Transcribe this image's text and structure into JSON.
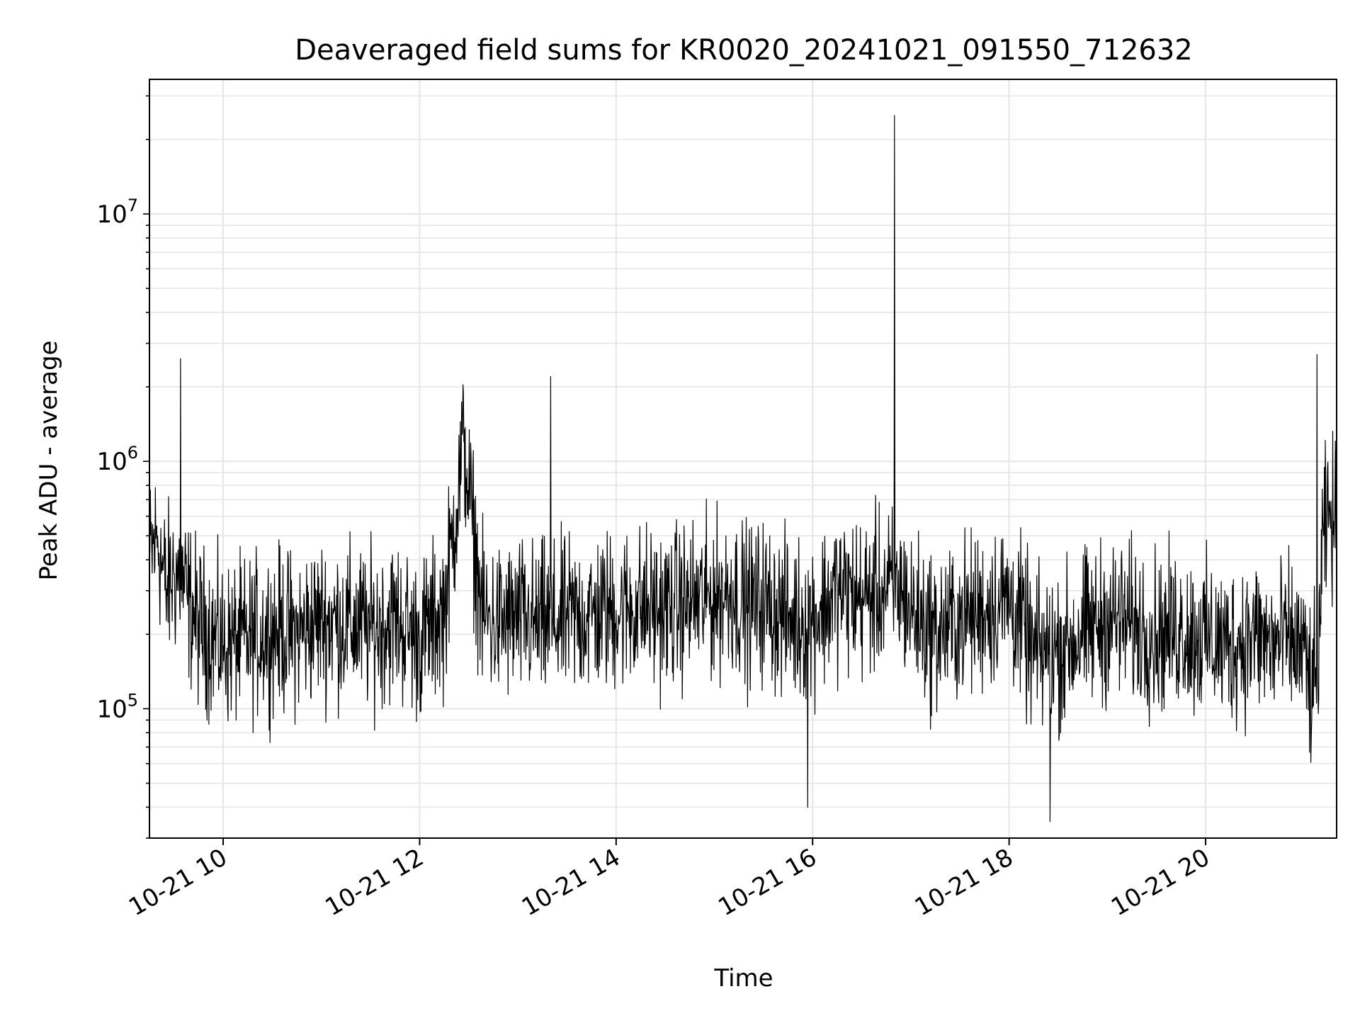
{
  "chart_data": {
    "type": "line",
    "title": "Deaveraged field sums for KR0020_20241021_091550_712632",
    "xlabel": "Time",
    "ylabel": "Peak ADU - average",
    "y_scale": "log",
    "ylim": [
      30000,
      35000000
    ],
    "xlim": [
      "2024-10-21T09:15",
      "2024-10-21T21:20"
    ],
    "grid": true,
    "line_color": "#000000",
    "grid_color": "#e6e6e6",
    "x_ticks": [
      {
        "x": "2024-10-21T10:00",
        "label": "10-21 10"
      },
      {
        "x": "2024-10-21T12:00",
        "label": "10-21 12"
      },
      {
        "x": "2024-10-21T14:00",
        "label": "10-21 14"
      },
      {
        "x": "2024-10-21T16:00",
        "label": "10-21 16"
      },
      {
        "x": "2024-10-21T18:00",
        "label": "10-21 18"
      },
      {
        "x": "2024-10-21T20:00",
        "label": "10-21 20"
      }
    ],
    "y_ticks": [
      {
        "value": 100000,
        "base": "10",
        "exp": "5"
      },
      {
        "value": 1000000,
        "base": "10",
        "exp": "6"
      },
      {
        "value": 10000000,
        "base": "10",
        "exp": "7"
      }
    ],
    "series": [
      {
        "x": [
          "2024-10-21T09:15",
          "2024-10-21T09:20",
          "2024-10-21T09:25",
          "2024-10-21T09:30",
          "2024-10-21T09:34",
          "2024-10-21T09:38",
          "2024-10-21T09:45",
          "2024-10-21T10:00",
          "2024-10-21T10:15",
          "2024-10-21T10:30",
          "2024-10-21T10:45",
          "2024-10-21T11:00",
          "2024-10-21T11:15",
          "2024-10-21T11:30",
          "2024-10-21T11:45",
          "2024-10-21T12:00",
          "2024-10-21T12:15",
          "2024-10-21T12:27",
          "2024-10-21T12:38",
          "2024-10-21T12:45",
          "2024-10-21T13:00",
          "2024-10-21T13:10",
          "2024-10-21T13:20",
          "2024-10-21T13:30",
          "2024-10-21T13:45",
          "2024-10-21T14:00",
          "2024-10-21T14:15",
          "2024-10-21T14:30",
          "2024-10-21T14:45",
          "2024-10-21T15:00",
          "2024-10-21T15:10",
          "2024-10-21T15:20",
          "2024-10-21T15:30",
          "2024-10-21T15:45",
          "2024-10-21T15:57",
          "2024-10-21T16:05",
          "2024-10-21T16:15",
          "2024-10-21T16:30",
          "2024-10-21T16:45",
          "2024-10-21T16:50",
          "2024-10-21T16:55",
          "2024-10-21T17:00",
          "2024-10-21T17:15",
          "2024-10-21T17:30",
          "2024-10-21T17:45",
          "2024-10-21T18:00",
          "2024-10-21T18:15",
          "2024-10-21T18:25",
          "2024-10-21T18:35",
          "2024-10-21T18:45",
          "2024-10-21T19:00",
          "2024-10-21T19:15",
          "2024-10-21T19:30",
          "2024-10-21T19:45",
          "2024-10-21T20:00",
          "2024-10-21T20:15",
          "2024-10-21T20:30",
          "2024-10-21T20:40",
          "2024-10-21T20:50",
          "2024-10-21T21:00",
          "2024-10-21T21:04",
          "2024-10-21T21:08",
          "2024-10-21T21:12",
          "2024-10-21T21:16",
          "2024-10-21T21:20"
        ],
        "y": [
          400000,
          500000,
          300000,
          350000,
          2600000,
          280000,
          220000,
          180000,
          190000,
          210000,
          200000,
          230000,
          220000,
          210000,
          230000,
          190000,
          250000,
          1200000,
          240000,
          220000,
          230000,
          220000,
          2200000,
          230000,
          240000,
          250000,
          260000,
          250000,
          270000,
          280000,
          300000,
          260000,
          270000,
          230000,
          40000,
          250000,
          300000,
          280000,
          300000,
          25000000,
          300000,
          250000,
          200000,
          230000,
          250000,
          280000,
          170000,
          35000,
          180000,
          200000,
          230000,
          220000,
          200000,
          210000,
          190000,
          180000,
          200000,
          180000,
          190000,
          170000,
          120000,
          2700000,
          500000,
          600000,
          550000
        ]
      }
    ]
  }
}
